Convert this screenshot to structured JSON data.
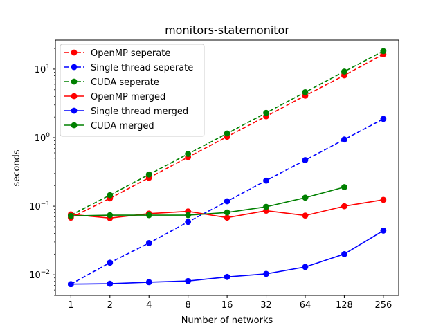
{
  "chart_data": {
    "type": "line",
    "title": "monitors-statemonitor",
    "xlabel": "Number of networks",
    "ylabel": "seconds",
    "x_scale": "log2",
    "y_scale": "log10",
    "x": [
      1,
      2,
      4,
      8,
      16,
      32,
      64,
      128,
      256
    ],
    "x_tick_labels": [
      "1",
      "2",
      "4",
      "8",
      "16",
      "32",
      "64",
      "128",
      "256"
    ],
    "xlim": [
      0.76,
      336
    ],
    "ylim": [
      0.005,
      26.5
    ],
    "y_ticks": [
      {
        "value": 0.01,
        "base": "10",
        "exp": "−2"
      },
      {
        "value": 0.1,
        "base": "10",
        "exp": "−1"
      },
      {
        "value": 1,
        "base": "10",
        "exp": "0"
      },
      {
        "value": 10,
        "base": "10",
        "exp": "1"
      }
    ],
    "grid": false,
    "legend_position": "upper-left",
    "series": [
      {
        "name": "OpenMP seperate",
        "color": "#ff0000",
        "dash": true,
        "values": [
          0.068,
          0.13,
          0.26,
          0.52,
          1.03,
          2.05,
          4.1,
          8.1,
          16.5
        ]
      },
      {
        "name": "Single thread seperate",
        "color": "#0000ff",
        "dash": true,
        "values": [
          0.0073,
          0.015,
          0.029,
          0.059,
          0.118,
          0.236,
          0.47,
          0.94,
          1.88
        ]
      },
      {
        "name": "CUDA seperate",
        "color": "#008000",
        "dash": true,
        "values": [
          0.074,
          0.145,
          0.29,
          0.58,
          1.15,
          2.3,
          4.6,
          9.2,
          18.3
        ]
      },
      {
        "name": "OpenMP merged",
        "color": "#ff0000",
        "dash": false,
        "values": [
          0.076,
          0.067,
          0.078,
          0.084,
          0.068,
          0.086,
          0.073,
          0.1,
          0.124
        ]
      },
      {
        "name": "Single thread merged",
        "color": "#0000ff",
        "dash": false,
        "values": [
          0.0073,
          0.0074,
          0.0078,
          0.0081,
          0.0093,
          0.0103,
          0.013,
          0.02,
          0.044
        ]
      },
      {
        "name": "CUDA merged",
        "color": "#008000",
        "dash": false,
        "values": [
          0.072,
          0.074,
          0.074,
          0.074,
          0.081,
          0.098,
          0.133,
          0.19,
          null
        ]
      }
    ]
  }
}
